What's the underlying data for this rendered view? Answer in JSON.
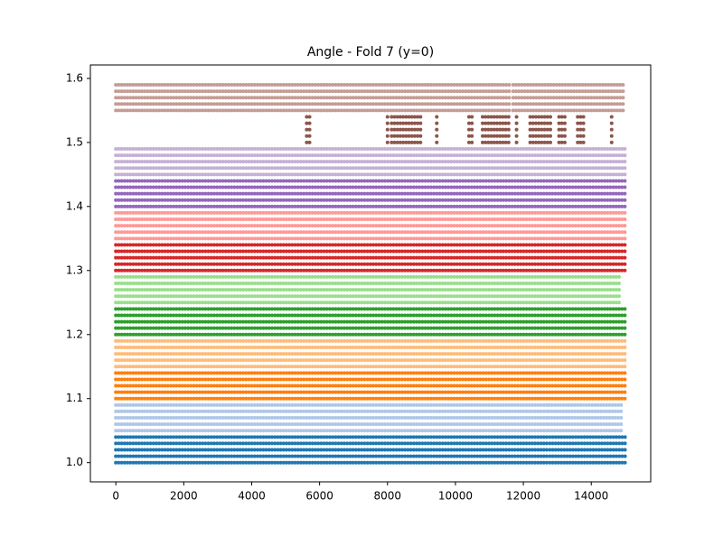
{
  "chart_data": {
    "type": "scatter",
    "title": "Angle - Fold 7 (y=0)",
    "xlim": [
      -750,
      15750
    ],
    "ylim": [
      0.97,
      1.621
    ],
    "xticks": [
      0,
      2000,
      4000,
      6000,
      8000,
      10000,
      12000,
      14000
    ],
    "yticks": [
      {
        "value": 1,
        "label": "1.0"
      },
      1.1,
      1.2,
      1.3,
      1.4,
      1.5,
      1.6
    ],
    "series": [
      {
        "color": "#1f77b4",
        "levels": [
          1.0,
          1.01,
          1.02,
          1.03,
          1.04
        ],
        "x_segments": [
          [
            0,
            12700
          ],
          [
            12780,
            15000
          ]
        ]
      },
      {
        "color": "#aec7e8",
        "levels": [
          1.05,
          1.06,
          1.07,
          1.08,
          1.09
        ],
        "x_segments": [
          [
            0,
            12700
          ],
          [
            12750,
            14950
          ]
        ]
      },
      {
        "color": "#ff7f0e",
        "levels": [
          1.1,
          1.11,
          1.12,
          1.13,
          1.14
        ],
        "x_segments": [
          [
            0,
            15000
          ]
        ]
      },
      {
        "color": "#ffbb78",
        "levels": [
          1.15,
          1.16,
          1.17,
          1.18,
          1.19
        ],
        "x_segments": [
          [
            0,
            15000
          ]
        ]
      },
      {
        "color": "#2ca02c",
        "levels": [
          1.2,
          1.21,
          1.22,
          1.23,
          1.24
        ],
        "x_segments": [
          [
            0,
            15000
          ]
        ]
      },
      {
        "color": "#98df8a",
        "levels": [
          1.25,
          1.26,
          1.27,
          1.28,
          1.29
        ],
        "x_segments": [
          [
            0,
            14850
          ]
        ]
      },
      {
        "color": "#d62728",
        "levels": [
          1.3,
          1.31,
          1.32,
          1.33,
          1.34
        ],
        "x_segments": [
          [
            0,
            15000
          ]
        ]
      },
      {
        "color": "#ff9896",
        "levels": [
          1.35,
          1.36,
          1.37,
          1.38,
          1.39
        ],
        "x_segments": [
          [
            0,
            15000
          ]
        ]
      },
      {
        "color": "#9467bd",
        "levels": [
          1.4,
          1.41,
          1.42,
          1.43,
          1.44
        ],
        "x_segments": [
          [
            0,
            15000
          ]
        ]
      },
      {
        "color": "#c5b0d5",
        "levels": [
          1.45,
          1.46,
          1.47,
          1.48,
          1.49
        ],
        "x_segments": [
          [
            0,
            15000
          ]
        ]
      },
      {
        "color": "#8c564b",
        "levels": [
          1.5,
          1.51,
          1.52,
          1.53,
          1.54
        ],
        "x_segments": [
          [
            5620,
            5720
          ],
          [
            8000,
            8040
          ],
          [
            8120,
            9000
          ],
          [
            9450,
            9520
          ],
          [
            10400,
            10520
          ],
          [
            10800,
            11600
          ],
          [
            11800,
            11840
          ],
          [
            12200,
            12800
          ],
          [
            13050,
            13250
          ],
          [
            13600,
            13800
          ],
          [
            14600,
            14650
          ]
        ]
      },
      {
        "color": "#c49c94",
        "levels": [
          1.55,
          1.56,
          1.57,
          1.58,
          1.59
        ],
        "x_segments": [
          [
            0,
            11600
          ],
          [
            11700,
            15000
          ]
        ]
      }
    ]
  }
}
